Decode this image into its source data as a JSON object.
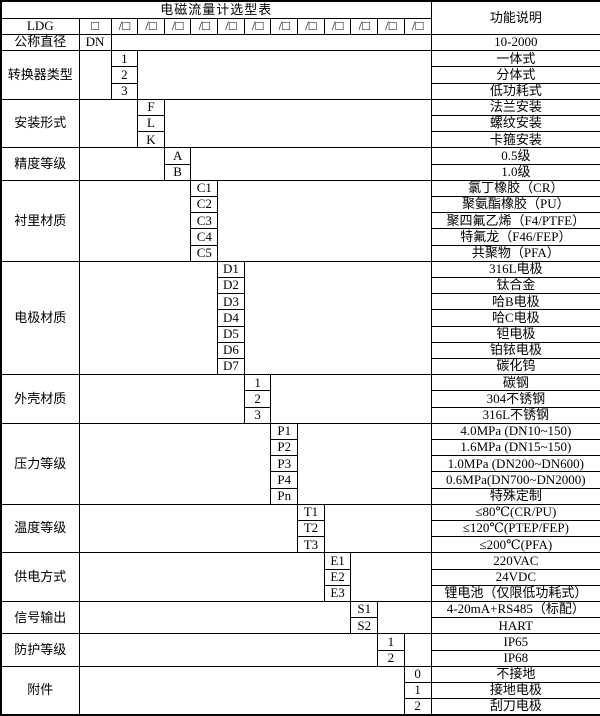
{
  "title": "电磁流量计选型表",
  "header_right": "功能说明",
  "model_row": {
    "prefix": "LDG",
    "first_box": "□",
    "slot": "/□",
    "slot_count": 12
  },
  "sections": [
    {
      "label": "公称直径",
      "column": 0,
      "rows": [
        {
          "code": "DN",
          "desc": "10-2000"
        }
      ]
    },
    {
      "label": "转换器类型",
      "column": 1,
      "rows": [
        {
          "code": "1",
          "desc": "一体式"
        },
        {
          "code": "2",
          "desc": "分体式"
        },
        {
          "code": "3",
          "desc": "低功耗式"
        }
      ]
    },
    {
      "label": "安装形式",
      "column": 2,
      "rows": [
        {
          "code": "F",
          "desc": "法兰安装"
        },
        {
          "code": "L",
          "desc": "螺纹安装"
        },
        {
          "code": "K",
          "desc": "卡箍安装"
        }
      ]
    },
    {
      "label": "精度等级",
      "column": 3,
      "rows": [
        {
          "code": "A",
          "desc": "0.5级"
        },
        {
          "code": "B",
          "desc": "1.0级"
        }
      ]
    },
    {
      "label": "衬里材质",
      "column": 4,
      "rows": [
        {
          "code": "C1",
          "desc": "氯丁橡胶（CR）"
        },
        {
          "code": "C2",
          "desc": "聚氨酯橡胶（PU）"
        },
        {
          "code": "C3",
          "desc": "聚四氟乙烯（F4/PTFE）"
        },
        {
          "code": "C4",
          "desc": "特氟龙（F46/FEP）"
        },
        {
          "code": "C5",
          "desc": "共聚物（PFA）"
        }
      ]
    },
    {
      "label": "电极材质",
      "column": 5,
      "rows": [
        {
          "code": "D1",
          "desc": "316L电极"
        },
        {
          "code": "D2",
          "desc": "钛合金"
        },
        {
          "code": "D3",
          "desc": "哈B电极"
        },
        {
          "code": "D4",
          "desc": "哈C电极"
        },
        {
          "code": "D5",
          "desc": "钽电极"
        },
        {
          "code": "D6",
          "desc": "铂铱电极"
        },
        {
          "code": "D7",
          "desc": "碳化钨"
        }
      ]
    },
    {
      "label": "外壳材质",
      "column": 6,
      "rows": [
        {
          "code": "1",
          "desc": "碳钢"
        },
        {
          "code": "2",
          "desc": "304不锈钢"
        },
        {
          "code": "3",
          "desc": "316L不锈钢"
        }
      ]
    },
    {
      "label": "压力等级",
      "column": 7,
      "rows": [
        {
          "code": "P1",
          "desc": "4.0MPa (DN10~150)",
          "align": "left"
        },
        {
          "code": "P2",
          "desc": "1.6MPa (DN15~150)",
          "align": "left"
        },
        {
          "code": "P3",
          "desc": "1.0MPa (DN200~DN600)",
          "align": "left"
        },
        {
          "code": "P4",
          "desc": "0.6MPa(DN700~DN2000)",
          "align": "left"
        },
        {
          "code": "Pn",
          "desc": "特殊定制"
        }
      ]
    },
    {
      "label": "温度等级",
      "column": 8,
      "rows": [
        {
          "code": "T1",
          "desc": "≤80℃(CR/PU)"
        },
        {
          "code": "T2",
          "desc": "≤120℃(PTEP/FEP)"
        },
        {
          "code": "T3",
          "desc": "≤200℃(PFA)"
        }
      ]
    },
    {
      "label": "供电方式",
      "column": 9,
      "rows": [
        {
          "code": "E1",
          "desc": "220VAC"
        },
        {
          "code": "E2",
          "desc": "24VDC"
        },
        {
          "code": "E3",
          "desc": "锂电池（仅限低功耗式）"
        }
      ]
    },
    {
      "label": "信号输出",
      "column": 10,
      "rows": [
        {
          "code": "S1",
          "desc": "4-20mA+RS485（标配）"
        },
        {
          "code": "S2",
          "desc": "HART"
        }
      ]
    },
    {
      "label": "防护等级",
      "column": 11,
      "rows": [
        {
          "code": "1",
          "desc": "IP65"
        },
        {
          "code": "2",
          "desc": "IP68"
        }
      ]
    },
    {
      "label": "附件",
      "column": 12,
      "rows": [
        {
          "code": "0",
          "desc": "不接地"
        },
        {
          "code": "1",
          "desc": "接地电极"
        },
        {
          "code": "2",
          "desc": "刮刀电极"
        }
      ]
    }
  ],
  "layout_colors": {
    "border": "#000000",
    "background": "#ffffff",
    "text": "#000000"
  }
}
